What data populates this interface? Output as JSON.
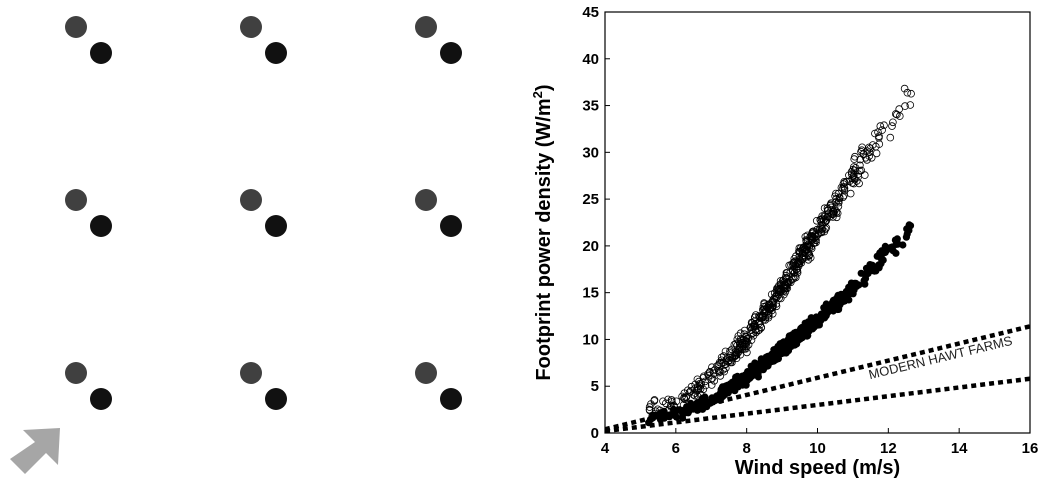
{
  "layout_panel": {
    "grid_rows": 3,
    "grid_cols": 3,
    "turbine_pair_colors": {
      "upwind": "#404040",
      "downwind": "#111111"
    },
    "wind_arrow": {
      "icon": "wind-direction-arrow-icon",
      "color": "#a6a6a6",
      "direction": "north-east"
    }
  },
  "chart_data": {
    "type": "scatter",
    "title": "",
    "xlabel": "Wind speed (m/s)",
    "ylabel": "Footprint power density (W/m²)",
    "xlim": [
      4,
      16
    ],
    "ylim": [
      0,
      45
    ],
    "xticks": [
      "4",
      "6",
      "8",
      "10",
      "12",
      "14",
      "16"
    ],
    "yticks": [
      "0",
      "5",
      "10",
      "15",
      "20",
      "25",
      "30",
      "35",
      "40",
      "45"
    ],
    "grid": false,
    "legend": "none",
    "series": [
      {
        "marker": "open-circle",
        "color": "#000000",
        "trend": {
          "x": [
            5.2,
            6,
            7,
            8,
            9,
            10,
            11,
            12,
            12.7
          ],
          "y": [
            2.2,
            3.3,
            5.8,
            10.0,
            15.5,
            21.5,
            27.5,
            33.0,
            36.5
          ]
        },
        "spread": 1.5
      },
      {
        "marker": "filled-circle",
        "color": "#000000",
        "trend": {
          "x": [
            5.2,
            6,
            7,
            8,
            9,
            10,
            11,
            12,
            12.7
          ],
          "y": [
            1.5,
            2.0,
            3.5,
            6.0,
            9.0,
            12.0,
            15.5,
            19.5,
            22.0
          ]
        },
        "spread": 0.9
      },
      {
        "style": "dotted-line",
        "color": "#000000",
        "x": [
          4,
          16
        ],
        "y": [
          0.4,
          11.4
        ]
      },
      {
        "style": "dotted-line",
        "color": "#000000",
        "x": [
          4,
          16
        ],
        "y": [
          0.2,
          5.8
        ]
      }
    ],
    "annotations": [
      {
        "text": "MODERN HAWT FARMS",
        "x": 13.5,
        "y": 7.6
      }
    ]
  }
}
